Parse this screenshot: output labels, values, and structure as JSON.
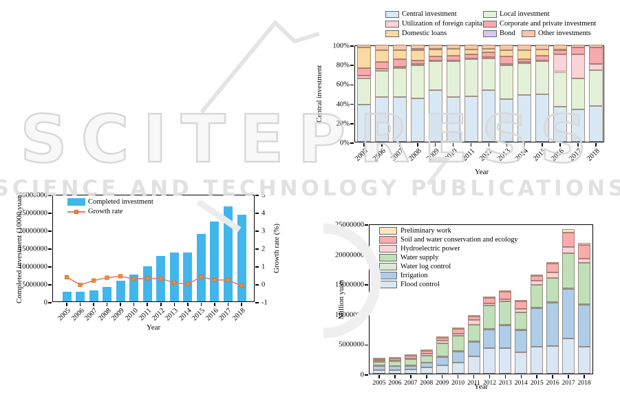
{
  "watermark": {
    "brand": "SCITEPRESS",
    "tagline": "SCIENCE AND TECHNOLOGY PUBLICATIONS"
  },
  "chart_data": [
    {
      "id": "funding-structure-percent",
      "type": "bar",
      "subtype": "stacked-100-percent",
      "ylabel": "Central investment",
      "xlabel": "Year",
      "yticks": [
        "0%",
        "20%",
        "40%",
        "60%",
        "80%",
        "100%"
      ],
      "ylim": [
        0,
        100
      ],
      "categories": [
        "2005",
        "2006",
        "2007",
        "2008",
        "2009",
        "2010",
        "2011",
        "2012",
        "2013",
        "2014",
        "2015",
        "2016",
        "2017",
        "2018"
      ],
      "series": [
        {
          "name": "Central investment",
          "color": "#d9e8f5",
          "values": [
            38,
            46,
            46,
            45,
            53,
            46,
            47,
            53,
            44,
            48,
            49,
            36,
            33,
            37
          ]
        },
        {
          "name": "Local investment",
          "color": "#e4f1d9",
          "values": [
            27,
            27,
            30,
            34,
            30,
            37,
            38,
            33,
            35,
            33,
            34,
            36,
            32,
            37
          ]
        },
        {
          "name": "Utilization of foreign capital",
          "color": "#fad3d8",
          "values": [
            3,
            2,
            1,
            1,
            1,
            1,
            1,
            1,
            1,
            1,
            1,
            18,
            25,
            6
          ]
        },
        {
          "name": "Corporate and private investment",
          "color": "#f8a9ad",
          "values": [
            8,
            7,
            8,
            4,
            4,
            5,
            4,
            5,
            8,
            3,
            5,
            4,
            7,
            17
          ]
        },
        {
          "name": "Domestic loans",
          "color": "#fbd9a3",
          "values": [
            21,
            12,
            9,
            10,
            7,
            7,
            5,
            4,
            6,
            9,
            6,
            1,
            0,
            0
          ]
        },
        {
          "name": "Bond",
          "color": "#d8c8ed",
          "values": [
            0,
            0,
            0,
            2,
            1,
            0,
            0,
            0,
            0,
            0,
            0,
            0,
            0,
            0
          ]
        },
        {
          "name": "Other investments",
          "color": "#f6c6a5",
          "values": [
            3,
            6,
            6,
            4,
            4,
            4,
            5,
            4,
            6,
            6,
            5,
            5,
            3,
            3
          ]
        }
      ],
      "legend_rows": [
        [
          "Central investment",
          "Local investment"
        ],
        [
          "Utilization of foreign capital",
          "Corporate and private investment"
        ],
        [
          "Domestic loans",
          "Bond",
          "Other investments"
        ]
      ],
      "legend_position": "top"
    },
    {
      "id": "completed-investment-growth",
      "type": "bar",
      "subtype": "bar-with-line",
      "ylabel_left": "Completed investment (10000 yuan)",
      "ylabel_right": "Growth rate (%)",
      "xlabel": "Year",
      "ylim_left": [
        0,
        30000000
      ],
      "ylim_right": [
        -1,
        5
      ],
      "yticks_left": [
        "0",
        "5000000",
        "10000000",
        "15000000",
        "20000000",
        "25000000",
        "30000000"
      ],
      "yticks_right": [
        "-1",
        "0",
        "1",
        "2",
        "3",
        "4",
        "5"
      ],
      "categories": [
        "2005",
        "2006",
        "2007",
        "2008",
        "2009",
        "2010",
        "2011",
        "2012",
        "2013",
        "2014",
        "2015",
        "2016",
        "2017",
        "2018"
      ],
      "bar_series": {
        "name": "Completed investment",
        "color": "#41b6ec",
        "values": [
          2700000,
          2600000,
          3000000,
          4000000,
          5800000,
          7500000,
          9900000,
          12700000,
          13700000,
          13600000,
          18900000,
          22400000,
          26500000,
          24200000
        ]
      },
      "line_series": {
        "name": "Growth rate",
        "line_color": "#f4726a",
        "marker_color": "#ee8a39",
        "values": [
          0.43,
          0.0,
          0.24,
          0.4,
          0.48,
          0.33,
          0.37,
          0.35,
          0.12,
          0.04,
          0.45,
          0.27,
          0.27,
          -0.05
        ]
      },
      "legend_position": "upper-left-inside"
    },
    {
      "id": "investment-structure-by-purpose",
      "type": "bar",
      "subtype": "stacked",
      "ylabel": "Million yuan",
      "xlabel": "Year",
      "ylim": [
        0,
        25000000
      ],
      "yticks": [
        "0",
        "5000000",
        "10000000",
        "15000000",
        "20000000",
        "25000000"
      ],
      "categories": [
        "2005",
        "2006",
        "2007",
        "2008",
        "2009",
        "2010",
        "2011",
        "2012",
        "2013",
        "2014",
        "2015",
        "2016",
        "2017",
        "2018"
      ],
      "series": [
        {
          "name": "Flood control",
          "color": "#d9e7f4",
          "values": [
            600000,
            600000,
            700000,
            1000000,
            1400000,
            1800000,
            2900000,
            4200000,
            4250000,
            3500000,
            4500000,
            4600000,
            5900000,
            4500000
          ]
        },
        {
          "name": "Irrigation",
          "color": "#adcde9",
          "values": [
            700000,
            650000,
            600000,
            800000,
            1400000,
            1900000,
            2400000,
            3100000,
            3750000,
            3700000,
            6400000,
            7200000,
            8200000,
            7000000
          ]
        },
        {
          "name": "Water log control",
          "color": "#dde8d2",
          "values": [
            30000,
            30000,
            30000,
            40000,
            50000,
            50000,
            60000,
            100000,
            100000,
            100000,
            100000,
            100000,
            100000,
            100000
          ]
        },
        {
          "name": "Water supply",
          "color": "#bfe0b9",
          "values": [
            650000,
            800000,
            1050000,
            1150000,
            2250000,
            2550000,
            2840000,
            4000000,
            4000000,
            2900000,
            3800000,
            4000000,
            5900000,
            6900000
          ]
        },
        {
          "name": "Hydroelectric power",
          "color": "#fbd3d7",
          "values": [
            150000,
            150000,
            200000,
            300000,
            400000,
            400000,
            700000,
            300000,
            300000,
            600000,
            700000,
            1000000,
            1000000,
            700000
          ]
        },
        {
          "name": "Soil and water conservation and ecology",
          "color": "#f9abae",
          "values": [
            250000,
            280000,
            400000,
            550000,
            500000,
            700000,
            600000,
            900000,
            1200000,
            1200000,
            800000,
            1400000,
            2400000,
            2300000
          ]
        },
        {
          "name": "Preliminary work",
          "color": "#fae6c3",
          "values": [
            60000,
            60000,
            70000,
            60000,
            100000,
            100000,
            100000,
            150000,
            300000,
            200000,
            200000,
            200000,
            600000,
            300000
          ]
        }
      ],
      "legend_top_to_bottom": [
        "Preliminary work",
        "Soil and water conservation and ecology",
        "Hydroelectric power",
        "Water supply",
        "Water log control",
        "Irrigation",
        "Flood control"
      ],
      "legend_position": "upper-left-inside"
    }
  ]
}
